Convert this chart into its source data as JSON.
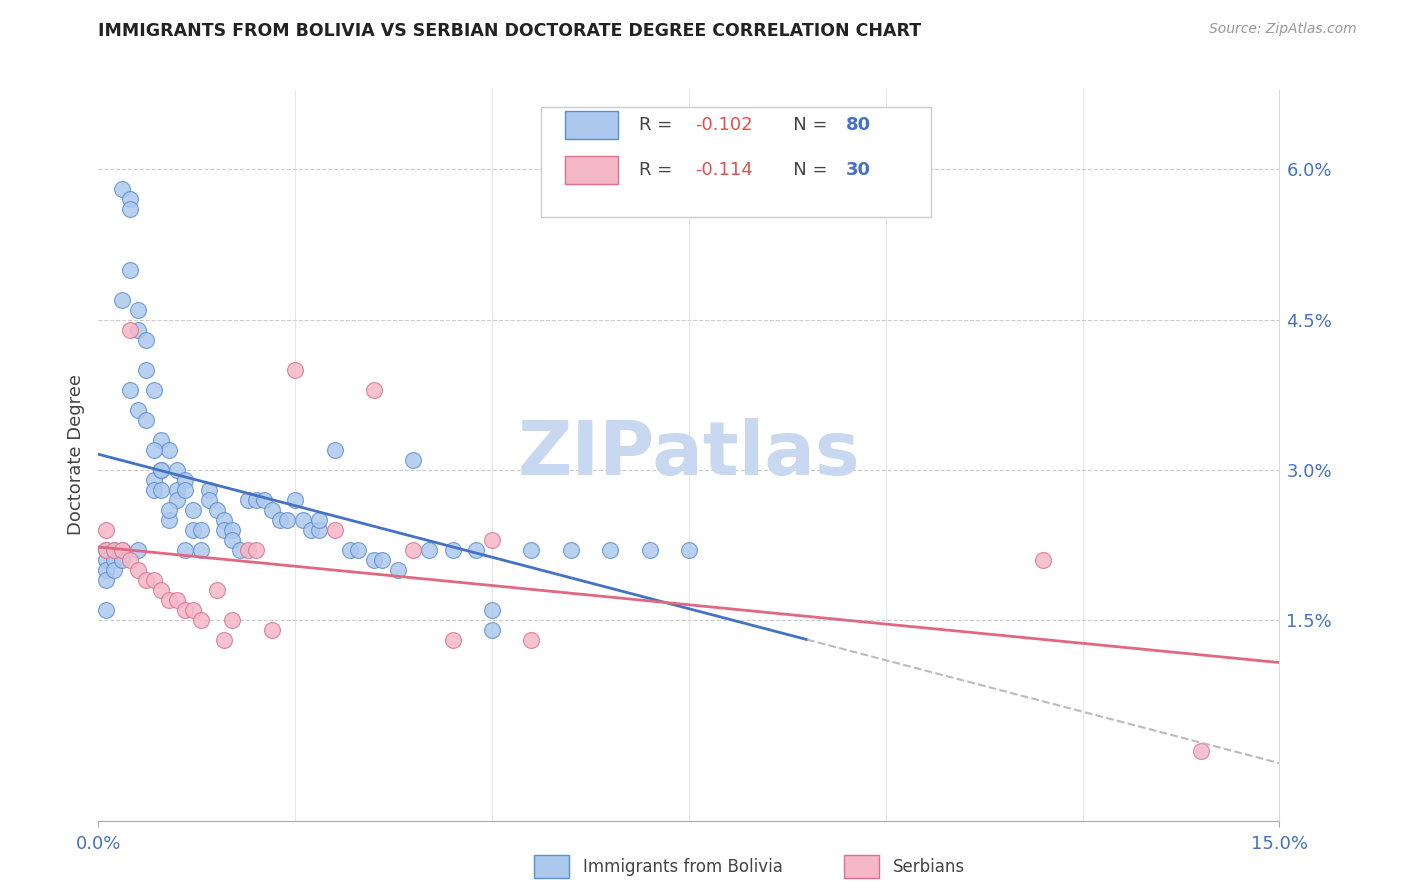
{
  "title": "IMMIGRANTS FROM BOLIVIA VS SERBIAN DOCTORATE DEGREE CORRELATION CHART",
  "source": "Source: ZipAtlas.com",
  "ylabel": "Doctorate Degree",
  "ytick_labels": [
    "6.0%",
    "4.5%",
    "3.0%",
    "1.5%"
  ],
  "ytick_values": [
    0.06,
    0.045,
    0.03,
    0.015
  ],
  "xlim": [
    0.0,
    0.15
  ],
  "ylim": [
    -0.005,
    0.068
  ],
  "legend1_r": "-0.102",
  "legend1_n": "80",
  "legend2_r": "-0.114",
  "legend2_n": "30",
  "bolivia_color": "#adc8ed",
  "serbia_color": "#f5b8c8",
  "bolivia_edge_color": "#5b8fd4",
  "serbia_edge_color": "#e0708a",
  "bolivia_line_color": "#4472c4",
  "serbia_line_color": "#e06880",
  "dash_color": "#bbbbbb",
  "watermark_color": "#c8d8f0",
  "r_color": "#e05050",
  "n_color": "#4472c4",
  "bolivia_x": [
    0.001,
    0.001,
    0.001,
    0.001,
    0.001,
    0.002,
    0.002,
    0.002,
    0.003,
    0.003,
    0.003,
    0.004,
    0.004,
    0.005,
    0.005,
    0.005,
    0.006,
    0.006,
    0.007,
    0.007,
    0.007,
    0.008,
    0.008,
    0.008,
    0.009,
    0.009,
    0.01,
    0.01,
    0.01,
    0.011,
    0.011,
    0.011,
    0.012,
    0.012,
    0.013,
    0.013,
    0.014,
    0.014,
    0.015,
    0.016,
    0.016,
    0.017,
    0.017,
    0.018,
    0.019,
    0.02,
    0.021,
    0.022,
    0.023,
    0.024,
    0.025,
    0.026,
    0.027,
    0.028,
    0.03,
    0.032,
    0.033,
    0.035,
    0.036,
    0.038,
    0.04,
    0.042,
    0.045,
    0.048,
    0.05,
    0.055,
    0.06,
    0.065,
    0.07,
    0.075,
    0.003,
    0.004,
    0.004,
    0.005,
    0.006,
    0.007,
    0.008,
    0.009,
    0.028,
    0.05
  ],
  "bolivia_y": [
    0.022,
    0.021,
    0.02,
    0.019,
    0.016,
    0.022,
    0.021,
    0.02,
    0.022,
    0.021,
    0.058,
    0.057,
    0.056,
    0.046,
    0.044,
    0.022,
    0.043,
    0.04,
    0.029,
    0.028,
    0.038,
    0.033,
    0.03,
    0.028,
    0.032,
    0.025,
    0.03,
    0.028,
    0.027,
    0.029,
    0.028,
    0.022,
    0.026,
    0.024,
    0.024,
    0.022,
    0.028,
    0.027,
    0.026,
    0.025,
    0.024,
    0.024,
    0.023,
    0.022,
    0.027,
    0.027,
    0.027,
    0.026,
    0.025,
    0.025,
    0.027,
    0.025,
    0.024,
    0.024,
    0.032,
    0.022,
    0.022,
    0.021,
    0.021,
    0.02,
    0.031,
    0.022,
    0.022,
    0.022,
    0.014,
    0.022,
    0.022,
    0.022,
    0.022,
    0.022,
    0.047,
    0.05,
    0.038,
    0.036,
    0.035,
    0.032,
    0.03,
    0.026,
    0.025,
    0.016
  ],
  "serbia_x": [
    0.001,
    0.001,
    0.002,
    0.003,
    0.004,
    0.004,
    0.005,
    0.006,
    0.007,
    0.008,
    0.009,
    0.01,
    0.011,
    0.012,
    0.013,
    0.015,
    0.016,
    0.017,
    0.019,
    0.02,
    0.022,
    0.025,
    0.03,
    0.035,
    0.04,
    0.045,
    0.05,
    0.055,
    0.12,
    0.14
  ],
  "serbia_y": [
    0.024,
    0.022,
    0.022,
    0.022,
    0.021,
    0.044,
    0.02,
    0.019,
    0.019,
    0.018,
    0.017,
    0.017,
    0.016,
    0.016,
    0.015,
    0.018,
    0.013,
    0.015,
    0.022,
    0.022,
    0.014,
    0.04,
    0.024,
    0.038,
    0.022,
    0.013,
    0.023,
    0.013,
    0.021,
    0.002
  ]
}
